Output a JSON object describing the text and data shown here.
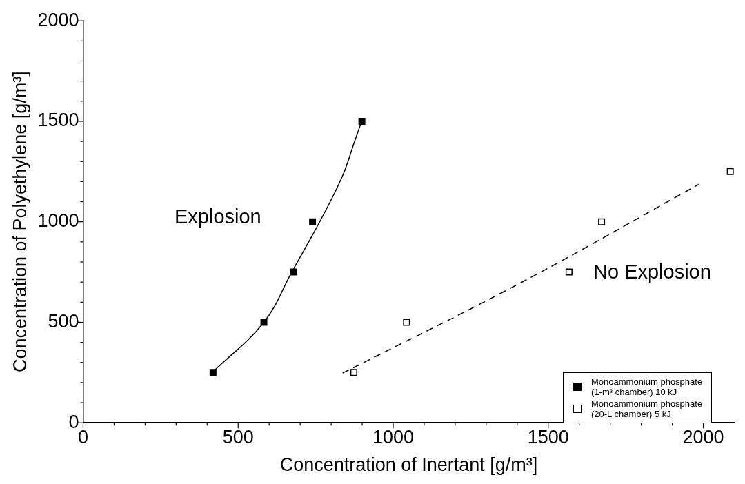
{
  "chart_data": {
    "type": "scatter",
    "xlabel": "Concentration of Inertant [g/m³]",
    "ylabel": "Concentration of Polyethylene [g/m³]",
    "xlim": [
      0,
      2100
    ],
    "xticks": [
      0,
      {
        "value": 100,
        "label": null
      },
      {
        "value": 200,
        "label": null
      },
      {
        "value": 300,
        "label": null
      },
      {
        "value": 400,
        "label": null
      },
      500,
      {
        "value": 600,
        "label": null
      },
      {
        "value": 700,
        "label": null
      },
      {
        "value": 800,
        "label": null
      },
      {
        "value": 900,
        "label": null
      },
      1000,
      {
        "value": 1100,
        "label": null
      },
      {
        "value": 1200,
        "label": null
      },
      {
        "value": 1300,
        "label": null
      },
      {
        "value": 1400,
        "label": null
      },
      1500,
      {
        "value": 1600,
        "label": null
      },
      {
        "value": 1700,
        "label": null
      },
      {
        "value": 1800,
        "label": null
      },
      {
        "value": 1900,
        "label": null
      },
      2000
    ],
    "ylim": [
      0,
      2000
    ],
    "yticks": [
      0,
      {
        "value": 100,
        "label": null
      },
      {
        "value": 200,
        "label": null
      },
      {
        "value": 300,
        "label": null
      },
      {
        "value": 400,
        "label": null
      },
      500,
      {
        "value": 600,
        "label": null
      },
      {
        "value": 700,
        "label": null
      },
      {
        "value": 800,
        "label": null
      },
      {
        "value": 900,
        "label": null
      },
      1000,
      {
        "value": 1100,
        "label": null
      },
      {
        "value": 1200,
        "label": null
      },
      {
        "value": 1300,
        "label": null
      },
      {
        "value": 1400,
        "label": null
      },
      1500,
      {
        "value": 1600,
        "label": null
      },
      {
        "value": 1700,
        "label": null
      },
      {
        "value": 1800,
        "label": null
      },
      {
        "value": 1900,
        "label": null
      },
      2000
    ],
    "grid": false,
    "legend": "bottom right",
    "annotations": [
      "Explosion",
      "No Explosion"
    ],
    "series": [
      {
        "name": "Monoammonium phosphate (1-m³ chamber) 10 kJ",
        "marker": "square",
        "color": "#000000",
        "x": [
          419,
          583,
          679,
          740,
          899
        ],
        "values": [
          250,
          500,
          750,
          1000,
          1500
        ]
      },
      {
        "name": "Monoammonium phosphate (20-L chamber) 5 kJ",
        "marker": "square",
        "color": "#ffffff",
        "x": [
          873,
          1043,
          1567,
          1672,
          2087
        ],
        "values": [
          250,
          500,
          750,
          1000,
          1250
        ]
      },
      {
        "type": "line",
        "marker": "none",
        "line_style": "solid",
        "color": "#000000",
        "x": [
          420,
          583,
          673,
          763,
          836,
          876,
          896
        ],
        "values": [
          255,
          500,
          750,
          1000,
          1226,
          1402,
          1490
        ]
      },
      {
        "type": "line",
        "marker": "none",
        "line_style": "dashed",
        "color": "#000000",
        "x": [
          837,
          1413,
          1985
        ],
        "values": [
          247,
          698,
          1186
        ]
      }
    ]
  }
}
